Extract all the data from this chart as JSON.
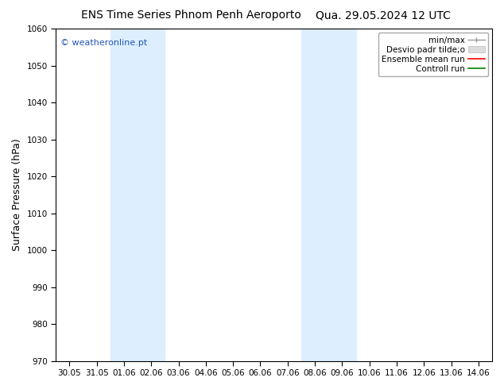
{
  "title_left": "ENS Time Series Phnom Penh Aeroporto",
  "title_right": "Qua. 29.05.2024 12 UTC",
  "ylabel": "Surface Pressure (hPa)",
  "ylim": [
    970,
    1060
  ],
  "yticks": [
    970,
    980,
    990,
    1000,
    1010,
    1020,
    1030,
    1040,
    1050,
    1060
  ],
  "x_labels": [
    "30.05",
    "31.05",
    "01.06",
    "02.06",
    "03.06",
    "04.06",
    "05.06",
    "06.06",
    "07.06",
    "08.06",
    "09.06",
    "10.06",
    "11.06",
    "12.06",
    "13.06",
    "14.06"
  ],
  "shaded_regions": [
    {
      "xstart": 2,
      "xend": 4
    },
    {
      "xstart": 9,
      "xend": 11
    }
  ],
  "shaded_color": "#ddeeff",
  "watermark": "© weatheronline.pt",
  "bg_color": "#ffffff",
  "plot_bg_color": "#ffffff",
  "title_fontsize": 10,
  "tick_fontsize": 7.5,
  "label_fontsize": 9,
  "watermark_fontsize": 8,
  "watermark_color": "#2255bb"
}
